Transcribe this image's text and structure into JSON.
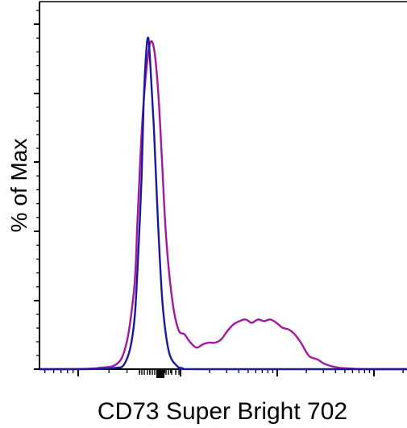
{
  "chart_data": {
    "type": "line",
    "title": "",
    "xlabel": "CD73 Super Bright 702",
    "ylabel": "% of Max",
    "x_scale": "log",
    "xlim": [
      1,
      10
    ],
    "ylim": [
      0,
      100
    ],
    "grid": false,
    "legend": "none",
    "x_tick_labels_shown": false,
    "y_tick_labels_shown": false,
    "series": [
      {
        "color": "#a3189f",
        "x": [
          1.0,
          1.5,
          2.4,
          3.0,
          3.3,
          3.4,
          3.5,
          3.6,
          3.7,
          3.8,
          3.9,
          4.0,
          4.1,
          4.25,
          4.4,
          4.55,
          4.7,
          4.85,
          5.0,
          5.15,
          5.3,
          5.45,
          5.6,
          5.75,
          5.9,
          6.05,
          6.2,
          6.35,
          6.5,
          6.65,
          6.8,
          6.95,
          7.1,
          7.25,
          7.4,
          7.6,
          7.8,
          8.0,
          8.3,
          8.6,
          9.0,
          10.0
        ],
        "y": [
          0,
          0,
          0.3,
          3.0,
          22.0,
          45.0,
          71.0,
          88.0,
          98.0,
          97.0,
          85.0,
          63.0,
          40.0,
          21.0,
          12.0,
          10.5,
          8.0,
          6.5,
          7.5,
          8.0,
          8.0,
          9.0,
          11.5,
          13.5,
          14.5,
          15.0,
          14.0,
          15.0,
          14.5,
          15.0,
          14.0,
          12.5,
          12.0,
          10.5,
          8.0,
          4.0,
          3.0,
          1.5,
          0.5,
          0.2,
          0,
          0
        ]
      },
      {
        "color": "#19199d",
        "x": [
          1.0,
          2.0,
          2.8,
          3.1,
          3.3,
          3.4,
          3.5,
          3.55,
          3.6,
          3.65,
          3.7,
          3.8,
          3.9,
          4.0,
          4.1,
          4.2,
          4.35,
          4.5,
          5.0,
          10.0
        ],
        "y": [
          0,
          0,
          0.3,
          2.0,
          12.0,
          30.0,
          58.0,
          80.0,
          93.0,
          100.0,
          95.0,
          73.0,
          45.0,
          22.0,
          10.0,
          4.0,
          1.2,
          0.3,
          0,
          0
        ]
      }
    ]
  }
}
